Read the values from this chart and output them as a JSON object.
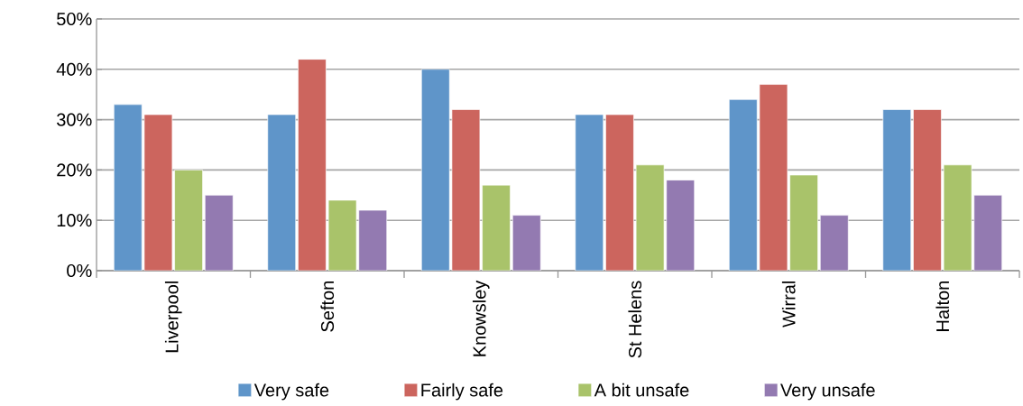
{
  "chart_data": {
    "type": "bar",
    "categories": [
      "Liverpool",
      "Sefton",
      "Knowsley",
      "St Helens",
      "Wirral",
      "Halton"
    ],
    "series": [
      {
        "name": "Very safe",
        "color": "#5f95c9",
        "values": [
          33,
          31,
          40,
          31,
          34,
          32
        ]
      },
      {
        "name": "Fairly safe",
        "color": "#cc655e",
        "values": [
          31,
          42,
          32,
          31,
          37,
          32
        ]
      },
      {
        "name": "A bit unsafe",
        "color": "#a9c36a",
        "values": [
          20,
          14,
          17,
          21,
          19,
          21
        ]
      },
      {
        "name": "Very unsafe",
        "color": "#937ab1",
        "values": [
          15,
          12,
          11,
          18,
          11,
          15
        ]
      }
    ],
    "ylim": [
      0,
      50
    ],
    "yticks": [
      {
        "value": 0,
        "label": "0%"
      },
      {
        "value": 10,
        "label": "10%"
      },
      {
        "value": 20,
        "label": "20%"
      },
      {
        "value": 30,
        "label": "30%"
      },
      {
        "value": 40,
        "label": "40%"
      },
      {
        "value": 50,
        "label": "50%"
      }
    ],
    "grid": "y",
    "legend": "bottom"
  }
}
